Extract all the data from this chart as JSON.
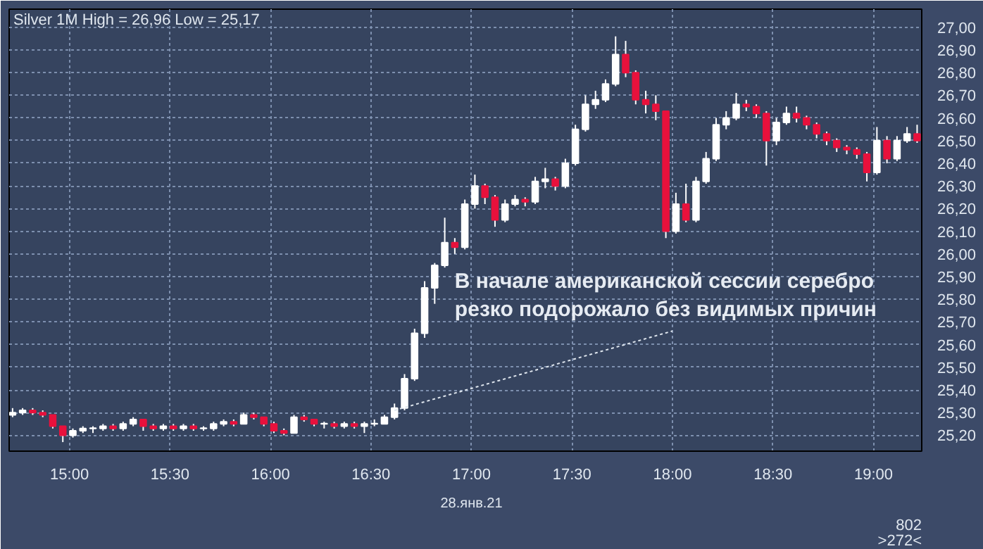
{
  "chart_data": {
    "type": "candlestick",
    "title": "Silver 1M High = 26,96 Low = 25,17",
    "x": [
      14.717,
      14.767,
      14.817,
      14.867,
      14.917,
      14.967,
      15.017,
      15.067,
      15.117,
      15.167,
      15.217,
      15.267,
      15.317,
      15.367,
      15.417,
      15.467,
      15.517,
      15.567,
      15.617,
      15.667,
      15.717,
      15.767,
      15.817,
      15.867,
      15.917,
      15.967,
      16.017,
      16.067,
      16.117,
      16.167,
      16.217,
      16.267,
      16.317,
      16.367,
      16.417,
      16.467,
      16.517,
      16.567,
      16.617,
      16.667,
      16.717,
      16.767,
      16.817,
      16.867,
      16.917,
      16.967,
      17.017,
      17.067,
      17.117,
      17.167,
      17.217,
      17.267,
      17.317,
      17.367,
      17.417,
      17.467,
      17.517,
      17.567,
      17.617,
      17.667,
      17.717,
      17.767,
      17.817,
      17.867,
      17.917,
      17.967,
      18.017,
      18.067,
      18.117,
      18.167,
      18.217,
      18.267,
      18.317,
      18.367,
      18.417,
      18.467,
      18.517,
      18.567,
      18.617,
      18.667,
      18.717,
      18.767,
      18.817,
      18.867,
      18.917,
      18.967,
      19.017,
      19.067,
      19.117,
      19.167,
      19.217
    ],
    "ohlc": [
      [
        25.29,
        25.32,
        25.28,
        25.3
      ],
      [
        25.3,
        25.32,
        25.29,
        25.31
      ],
      [
        25.31,
        25.32,
        25.29,
        25.3
      ],
      [
        25.3,
        25.31,
        25.28,
        25.29
      ],
      [
        25.29,
        25.29,
        25.23,
        25.24
      ],
      [
        25.24,
        25.24,
        25.17,
        25.2
      ],
      [
        25.2,
        25.23,
        25.19,
        25.22
      ],
      [
        25.22,
        25.24,
        25.21,
        25.23
      ],
      [
        25.23,
        25.24,
        25.21,
        25.23
      ],
      [
        25.23,
        25.25,
        25.22,
        25.24
      ],
      [
        25.24,
        25.25,
        25.22,
        25.23
      ],
      [
        25.23,
        25.26,
        25.22,
        25.25
      ],
      [
        25.25,
        25.28,
        25.24,
        25.27
      ],
      [
        25.27,
        25.27,
        25.22,
        25.24
      ],
      [
        25.24,
        25.25,
        25.22,
        25.23
      ],
      [
        25.23,
        25.25,
        25.22,
        25.24
      ],
      [
        25.24,
        25.25,
        25.22,
        25.23
      ],
      [
        25.23,
        25.25,
        25.22,
        25.24
      ],
      [
        25.24,
        25.25,
        25.22,
        25.23
      ],
      [
        25.23,
        25.24,
        25.22,
        25.23
      ],
      [
        25.23,
        25.26,
        25.22,
        25.25
      ],
      [
        25.25,
        25.27,
        25.24,
        25.26
      ],
      [
        25.26,
        25.27,
        25.24,
        25.25
      ],
      [
        25.25,
        25.3,
        25.25,
        25.29
      ],
      [
        25.29,
        25.3,
        25.27,
        25.28
      ],
      [
        25.28,
        25.28,
        25.24,
        25.25
      ],
      [
        25.25,
        25.26,
        25.21,
        25.22
      ],
      [
        25.22,
        25.23,
        25.2,
        25.21
      ],
      [
        25.21,
        25.29,
        25.21,
        25.28
      ],
      [
        25.28,
        25.29,
        25.26,
        25.27
      ],
      [
        25.27,
        25.27,
        25.24,
        25.25
      ],
      [
        25.25,
        25.26,
        25.23,
        25.25
      ],
      [
        25.25,
        25.26,
        25.23,
        25.24
      ],
      [
        25.24,
        25.26,
        25.23,
        25.25
      ],
      [
        25.25,
        25.26,
        25.23,
        25.24
      ],
      [
        25.24,
        25.26,
        25.21,
        25.25
      ],
      [
        25.25,
        25.27,
        25.24,
        25.25
      ],
      [
        25.25,
        25.29,
        25.25,
        25.28
      ],
      [
        25.28,
        25.34,
        25.27,
        25.32
      ],
      [
        25.32,
        25.47,
        25.31,
        25.45
      ],
      [
        25.45,
        25.67,
        25.44,
        25.65
      ],
      [
        25.65,
        25.88,
        25.63,
        25.85
      ],
      [
        25.85,
        25.96,
        25.78,
        25.95
      ],
      [
        25.95,
        26.16,
        25.94,
        26.05
      ],
      [
        26.05,
        26.07,
        26.0,
        26.03
      ],
      [
        26.03,
        26.24,
        26.02,
        26.22
      ],
      [
        26.22,
        26.35,
        26.2,
        26.3
      ],
      [
        26.3,
        26.31,
        26.22,
        26.25
      ],
      [
        26.25,
        26.26,
        26.12,
        26.15
      ],
      [
        26.15,
        26.24,
        26.14,
        26.22
      ],
      [
        26.22,
        26.26,
        26.21,
        26.24
      ],
      [
        26.24,
        26.25,
        26.21,
        26.23
      ],
      [
        26.23,
        26.34,
        26.22,
        26.32
      ],
      [
        26.32,
        26.38,
        26.29,
        26.33
      ],
      [
        26.33,
        26.34,
        26.28,
        26.3
      ],
      [
        26.3,
        26.42,
        26.29,
        26.4
      ],
      [
        26.4,
        26.57,
        26.39,
        26.55
      ],
      [
        26.55,
        26.7,
        26.54,
        26.66
      ],
      [
        26.66,
        26.72,
        26.64,
        26.68
      ],
      [
        26.68,
        26.77,
        26.67,
        26.75
      ],
      [
        26.75,
        26.96,
        26.74,
        26.88
      ],
      [
        26.88,
        26.94,
        26.78,
        26.8
      ],
      [
        26.8,
        26.81,
        26.66,
        26.68
      ],
      [
        26.68,
        26.72,
        26.62,
        26.66
      ],
      [
        26.66,
        26.7,
        26.59,
        26.63
      ],
      [
        26.63,
        26.63,
        26.07,
        26.1
      ],
      [
        26.1,
        26.27,
        26.09,
        26.22
      ],
      [
        26.22,
        26.31,
        26.14,
        26.15
      ],
      [
        26.15,
        26.34,
        26.14,
        26.32
      ],
      [
        26.32,
        26.45,
        26.31,
        26.42
      ],
      [
        26.42,
        26.6,
        26.41,
        26.57
      ],
      [
        26.57,
        26.63,
        26.55,
        26.6
      ],
      [
        26.6,
        26.71,
        26.59,
        26.66
      ],
      [
        26.66,
        26.68,
        26.63,
        26.65
      ],
      [
        26.65,
        26.66,
        26.6,
        26.62
      ],
      [
        26.62,
        26.63,
        26.39,
        26.5
      ],
      [
        26.5,
        26.6,
        26.48,
        26.58
      ],
      [
        26.58,
        26.65,
        26.57,
        26.62
      ],
      [
        26.62,
        26.65,
        26.58,
        26.6
      ],
      [
        26.6,
        26.61,
        26.55,
        26.57
      ],
      [
        26.57,
        26.58,
        26.51,
        26.53
      ],
      [
        26.53,
        26.54,
        26.48,
        26.5
      ],
      [
        26.5,
        26.51,
        26.45,
        26.47
      ],
      [
        26.47,
        26.48,
        26.44,
        26.46
      ],
      [
        26.46,
        26.47,
        26.42,
        26.44
      ],
      [
        26.44,
        26.45,
        26.32,
        26.36
      ],
      [
        26.36,
        26.56,
        26.35,
        26.5
      ],
      [
        26.5,
        26.52,
        26.4,
        26.42
      ],
      [
        26.42,
        26.52,
        26.41,
        26.5
      ],
      [
        26.5,
        26.56,
        26.49,
        26.53
      ],
      [
        26.53,
        26.57,
        26.49,
        26.5
      ]
    ],
    "colors": [
      "#ffffff",
      "#ffffff",
      "#e8113c",
      "#e8113c",
      "#e8113c",
      "#e8113c",
      "#ffffff",
      "#ffffff",
      "#ffffff",
      "#ffffff",
      "#e8113c",
      "#ffffff",
      "#ffffff",
      "#e8113c",
      "#e8113c",
      "#ffffff",
      "#e8113c",
      "#ffffff",
      "#e8113c",
      "#ffffff",
      "#ffffff",
      "#ffffff",
      "#e8113c",
      "#ffffff",
      "#e8113c",
      "#e8113c",
      "#e8113c",
      "#e8113c",
      "#ffffff",
      "#e8113c",
      "#e8113c",
      "#ffffff",
      "#e8113c",
      "#ffffff",
      "#e8113c",
      "#ffffff",
      "#ffffff",
      "#ffffff",
      "#ffffff",
      "#ffffff",
      "#ffffff",
      "#ffffff",
      "#ffffff",
      "#ffffff",
      "#e8113c",
      "#ffffff",
      "#ffffff",
      "#e8113c",
      "#e8113c",
      "#ffffff",
      "#ffffff",
      "#e8113c",
      "#ffffff",
      "#ffffff",
      "#e8113c",
      "#ffffff",
      "#ffffff",
      "#ffffff",
      "#ffffff",
      "#ffffff",
      "#ffffff",
      "#e8113c",
      "#e8113c",
      "#e8113c",
      "#e8113c",
      "#e8113c",
      "#ffffff",
      "#e8113c",
      "#ffffff",
      "#ffffff",
      "#ffffff",
      "#ffffff",
      "#ffffff",
      "#e8113c",
      "#e8113c",
      "#e8113c",
      "#ffffff",
      "#ffffff",
      "#e8113c",
      "#e8113c",
      "#e8113c",
      "#e8113c",
      "#e8113c",
      "#e8113c",
      "#e8113c",
      "#e8113c",
      "#ffffff",
      "#e8113c",
      "#ffffff",
      "#ffffff",
      "#e8113c"
    ],
    "xlim": [
      14.7,
      19.24
    ],
    "ylim": [
      25.13,
      27.08
    ],
    "xticks": [
      {
        "value": 15,
        "label": "15:00"
      },
      {
        "value": 15.5,
        "label": "15:30"
      },
      {
        "value": 16,
        "label": "16:00"
      },
      {
        "value": 16.5,
        "label": "16:30"
      },
      {
        "value": 17,
        "label": "17:00"
      },
      {
        "value": 17.5,
        "label": "17:30"
      },
      {
        "value": 18,
        "label": "18:00"
      },
      {
        "value": 18.5,
        "label": "18:30"
      },
      {
        "value": 19,
        "label": "19:00"
      }
    ],
    "yticks": [
      {
        "value": 25.2,
        "label": "25,20"
      },
      {
        "value": 25.3,
        "label": "25,30"
      },
      {
        "value": 25.4,
        "label": "25,40"
      },
      {
        "value": 25.5,
        "label": "25,50"
      },
      {
        "value": 25.6,
        "label": "25,60"
      },
      {
        "value": 25.7,
        "label": "25,70"
      },
      {
        "value": 25.8,
        "label": "25,80"
      },
      {
        "value": 25.9,
        "label": "25,90"
      },
      {
        "value": 26.0,
        "label": "26,00"
      },
      {
        "value": 26.1,
        "label": "26,10"
      },
      {
        "value": 26.2,
        "label": "26,20"
      },
      {
        "value": 26.3,
        "label": "26,30"
      },
      {
        "value": 26.4,
        "label": "26,40"
      },
      {
        "value": 26.5,
        "label": "26,50"
      },
      {
        "value": 26.6,
        "label": "26,60"
      },
      {
        "value": 26.7,
        "label": "26,70"
      },
      {
        "value": 26.8,
        "label": "26,80"
      },
      {
        "value": 26.9,
        "label": "26,90"
      },
      {
        "value": 27.0,
        "label": "27,00"
      }
    ],
    "grid": true,
    "annotations": [
      {
        "text": "В начале американской сессии серебро\nрезко подорожало без видимых причин",
        "x": 16.617,
        "y": 25.31
      },
      "28.янв.21",
      "802",
      ">272<"
    ]
  }
}
